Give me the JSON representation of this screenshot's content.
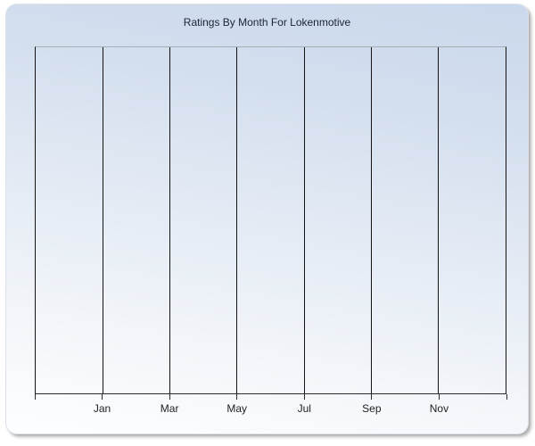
{
  "chart_data": {
    "type": "line",
    "title": "Ratings By Month For Lokenmotive",
    "x_tick_labels": [
      "Jan",
      "Mar",
      "May",
      "Jul",
      "Sep",
      "Nov"
    ],
    "series": [],
    "plot_empty": true,
    "y_axis_labels_visible": false,
    "grid": {
      "vertical": true,
      "horizontal": false
    },
    "legend": "none",
    "x_gridline_count": 8
  },
  "colors": {
    "page_background": "#ffffff",
    "panel_gradient_top": "#cad8ec",
    "panel_gradient_bottom": "#fdfeff",
    "gridline": "#141414",
    "plot_top_border": "#a7adb5",
    "axis_line": "#2b2b2b",
    "title_text": "#1c2433",
    "tick_label_text": "#1f1f1f",
    "panel_shadow": "#808080"
  }
}
